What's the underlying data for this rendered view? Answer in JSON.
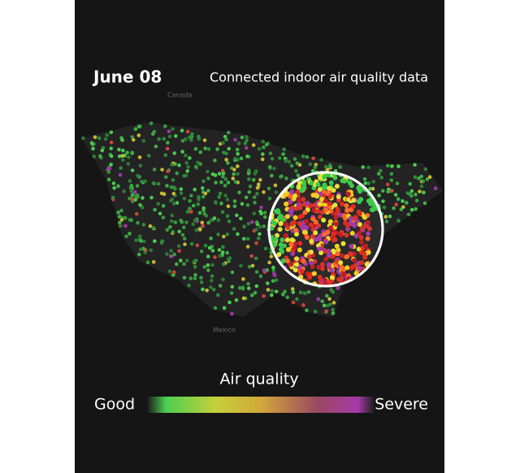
{
  "header": {
    "date": "June 08",
    "title": "Connected indoor air quality data"
  },
  "map": {
    "labels": [
      "Canada",
      "Mexico"
    ]
  },
  "legend": {
    "title": "Air quality",
    "low": "Good",
    "high": "Severe"
  }
}
